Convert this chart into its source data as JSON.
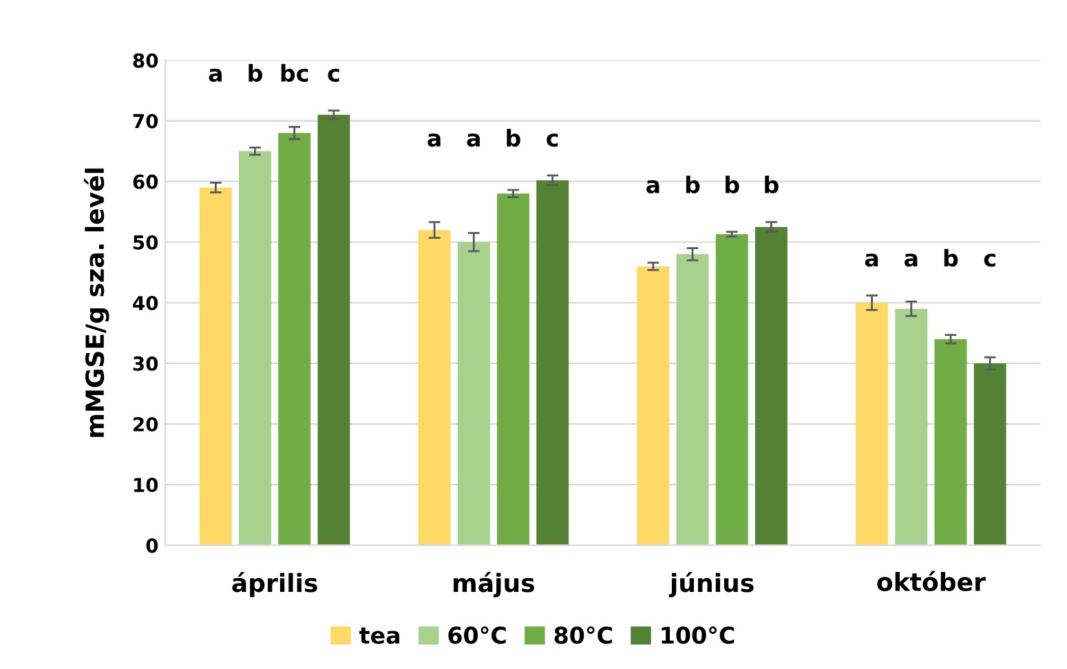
{
  "chart_data": {
    "type": "bar",
    "ylabel": "mMGSE/g sza. levél",
    "categories": [
      "április",
      "május",
      "június",
      "október"
    ],
    "series": [
      {
        "name": "tea",
        "color": "#ffd966",
        "values": [
          59,
          52,
          46,
          40
        ],
        "errors": [
          0.8,
          1.3,
          0.6,
          1.2
        ]
      },
      {
        "name": "60°C",
        "color": "#a9d18e",
        "values": [
          65,
          50,
          48,
          39
        ],
        "errors": [
          0.6,
          1.5,
          1.0,
          1.2
        ]
      },
      {
        "name": "80°C",
        "color": "#70ad47",
        "values": [
          68,
          58,
          51.3,
          34
        ],
        "errors": [
          1.0,
          0.6,
          0.4,
          0.7
        ]
      },
      {
        "name": "100°C",
        "color": "#548235",
        "values": [
          71,
          60.2,
          52.5,
          30
        ],
        "errors": [
          0.7,
          0.8,
          0.8,
          1.0
        ]
      }
    ],
    "ylim": [
      0,
      80
    ],
    "yticks": [
      0,
      10,
      20,
      30,
      40,
      50,
      60,
      70,
      80
    ],
    "grid": "y",
    "legend": "bottom",
    "annotations": [
      "a",
      "b",
      "bc",
      "c",
      "a",
      "a",
      "b",
      "c",
      "a",
      "b",
      "b",
      "b",
      "a",
      "a",
      "b",
      "c"
    ]
  }
}
